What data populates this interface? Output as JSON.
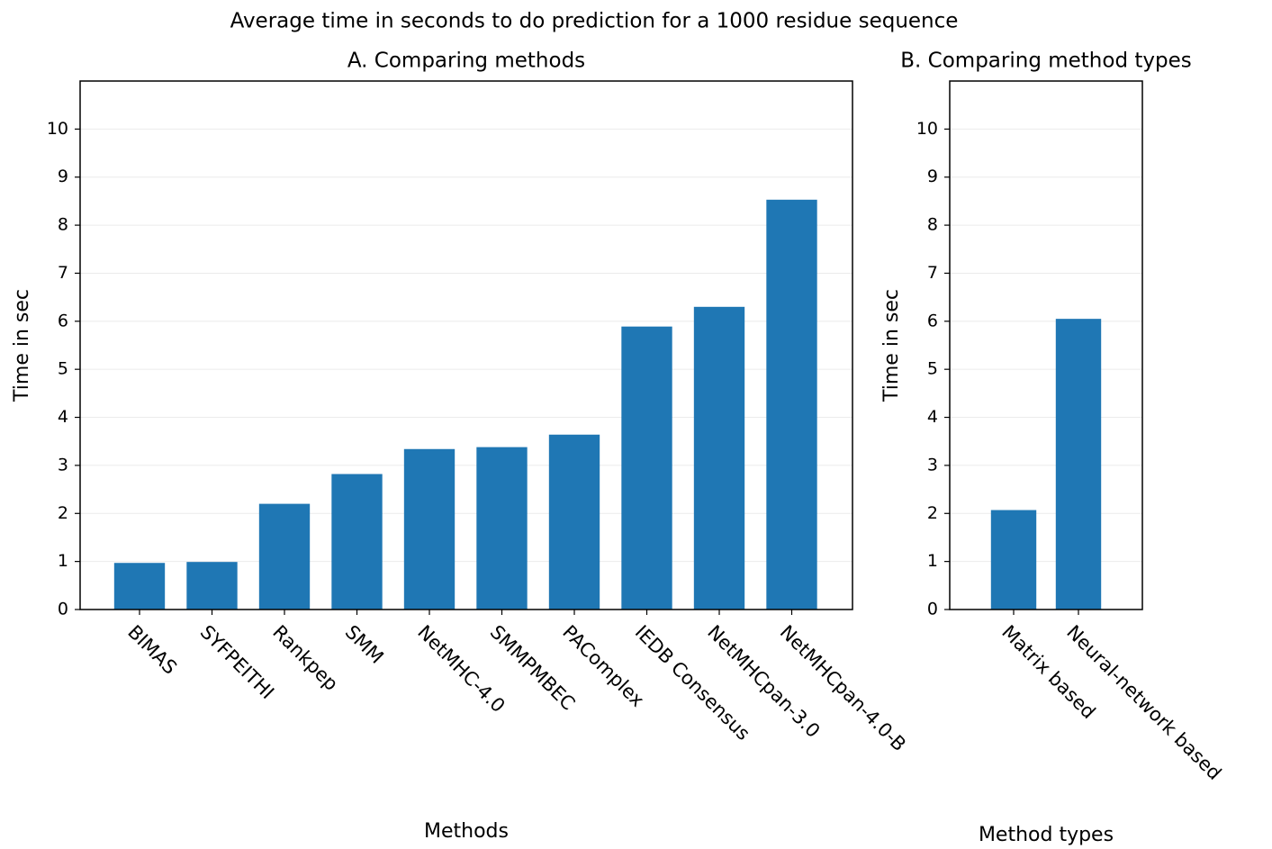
{
  "title": "Average time in seconds to do prediction for a 1000 residue sequence",
  "chart_data": [
    {
      "type": "bar",
      "title": "A. Comparing methods",
      "x_label": "Methods",
      "y_label": "Time in sec",
      "categories": [
        "BIMAS",
        "SYFPEITHI",
        "Rankpep",
        "SMM",
        "NetMHC-4.0",
        "SMMPMBEC",
        "PAComplex",
        "IEDB Consensus",
        "NetMHCpan-3.0",
        "NetMHCpan-4.0-B"
      ],
      "values": [
        0.97,
        0.99,
        2.2,
        2.82,
        3.34,
        3.38,
        3.64,
        5.89,
        6.3,
        8.53
      ],
      "color": "#1f77b4",
      "ylim": [
        0,
        11
      ],
      "yticks": [
        0,
        1,
        2,
        3,
        4,
        5,
        6,
        7,
        8,
        9,
        10
      ],
      "grid": true
    },
    {
      "type": "bar",
      "title": "B. Comparing method types",
      "x_label": "Method types",
      "y_label": "Time in sec",
      "categories": [
        "Matrix based",
        "Neural-network based"
      ],
      "values": [
        2.07,
        6.05
      ],
      "color": "#1f77b4",
      "ylim": [
        0,
        11
      ],
      "yticks": [
        0,
        1,
        2,
        3,
        4,
        5,
        6,
        7,
        8,
        9,
        10
      ],
      "grid": true
    }
  ]
}
